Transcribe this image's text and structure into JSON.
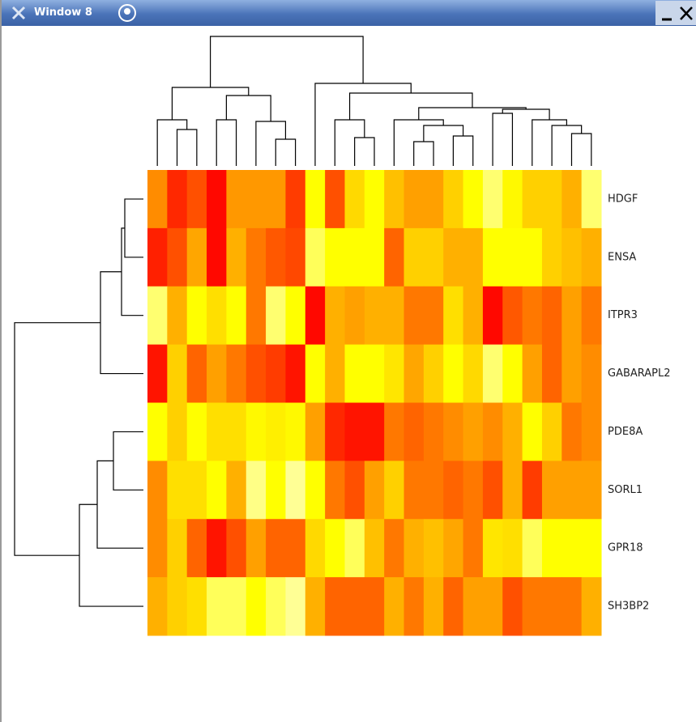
{
  "window": {
    "title": "Window 8"
  },
  "chart_data": {
    "type": "heatmap",
    "rows": [
      "HDGF",
      "ENSA",
      "ITPR3",
      "GABARAPL2",
      "PDE8A",
      "SORL1",
      "GPR18",
      "SH3BP2"
    ],
    "values": [
      [
        0.35,
        0.1,
        0.2,
        0.02,
        0.38,
        0.38,
        0.38,
        0.15,
        0.7,
        0.2,
        0.58,
        0.7,
        0.5,
        0.4,
        0.4,
        0.55,
        0.7,
        0.85,
        0.68,
        0.55,
        0.55,
        0.45,
        0.85
      ],
      [
        0.08,
        0.2,
        0.42,
        0.02,
        0.45,
        0.3,
        0.22,
        0.18,
        0.82,
        0.7,
        0.7,
        0.7,
        0.25,
        0.55,
        0.55,
        0.45,
        0.45,
        0.7,
        0.7,
        0.7,
        0.55,
        0.5,
        0.45
      ],
      [
        0.85,
        0.45,
        0.7,
        0.6,
        0.7,
        0.3,
        0.85,
        0.7,
        0.02,
        0.45,
        0.4,
        0.45,
        0.45,
        0.3,
        0.3,
        0.6,
        0.45,
        0.02,
        0.22,
        0.3,
        0.25,
        0.4,
        0.3
      ],
      [
        0.05,
        0.55,
        0.25,
        0.4,
        0.3,
        0.2,
        0.15,
        0.05,
        0.7,
        0.45,
        0.7,
        0.7,
        0.62,
        0.42,
        0.55,
        0.7,
        0.58,
        0.85,
        0.7,
        0.4,
        0.25,
        0.4,
        0.35
      ],
      [
        0.7,
        0.55,
        0.7,
        0.6,
        0.6,
        0.68,
        0.65,
        0.68,
        0.4,
        0.1,
        0.05,
        0.05,
        0.3,
        0.25,
        0.3,
        0.35,
        0.4,
        0.35,
        0.45,
        0.7,
        0.55,
        0.3,
        0.35
      ],
      [
        0.35,
        0.6,
        0.6,
        0.7,
        0.45,
        0.88,
        0.7,
        0.9,
        0.7,
        0.3,
        0.2,
        0.4,
        0.55,
        0.3,
        0.3,
        0.25,
        0.3,
        0.2,
        0.45,
        0.15,
        0.4,
        0.4,
        0.4
      ],
      [
        0.35,
        0.55,
        0.25,
        0.05,
        0.2,
        0.4,
        0.25,
        0.25,
        0.58,
        0.7,
        0.82,
        0.5,
        0.3,
        0.45,
        0.5,
        0.42,
        0.3,
        0.62,
        0.6,
        0.82,
        0.7,
        0.7,
        0.7
      ],
      [
        0.45,
        0.55,
        0.6,
        0.82,
        0.82,
        0.7,
        0.82,
        0.9,
        0.45,
        0.25,
        0.25,
        0.25,
        0.45,
        0.3,
        0.45,
        0.25,
        0.4,
        0.4,
        0.2,
        0.3,
        0.3,
        0.3,
        0.45
      ]
    ],
    "colormap": [
      {
        "value": 0,
        "color": "#ff0000"
      },
      {
        "value": 0.4,
        "color": "#ffa000"
      },
      {
        "value": 0.7,
        "color": "#ffff00"
      },
      {
        "value": 1,
        "color": "#ffffe0"
      }
    ]
  }
}
